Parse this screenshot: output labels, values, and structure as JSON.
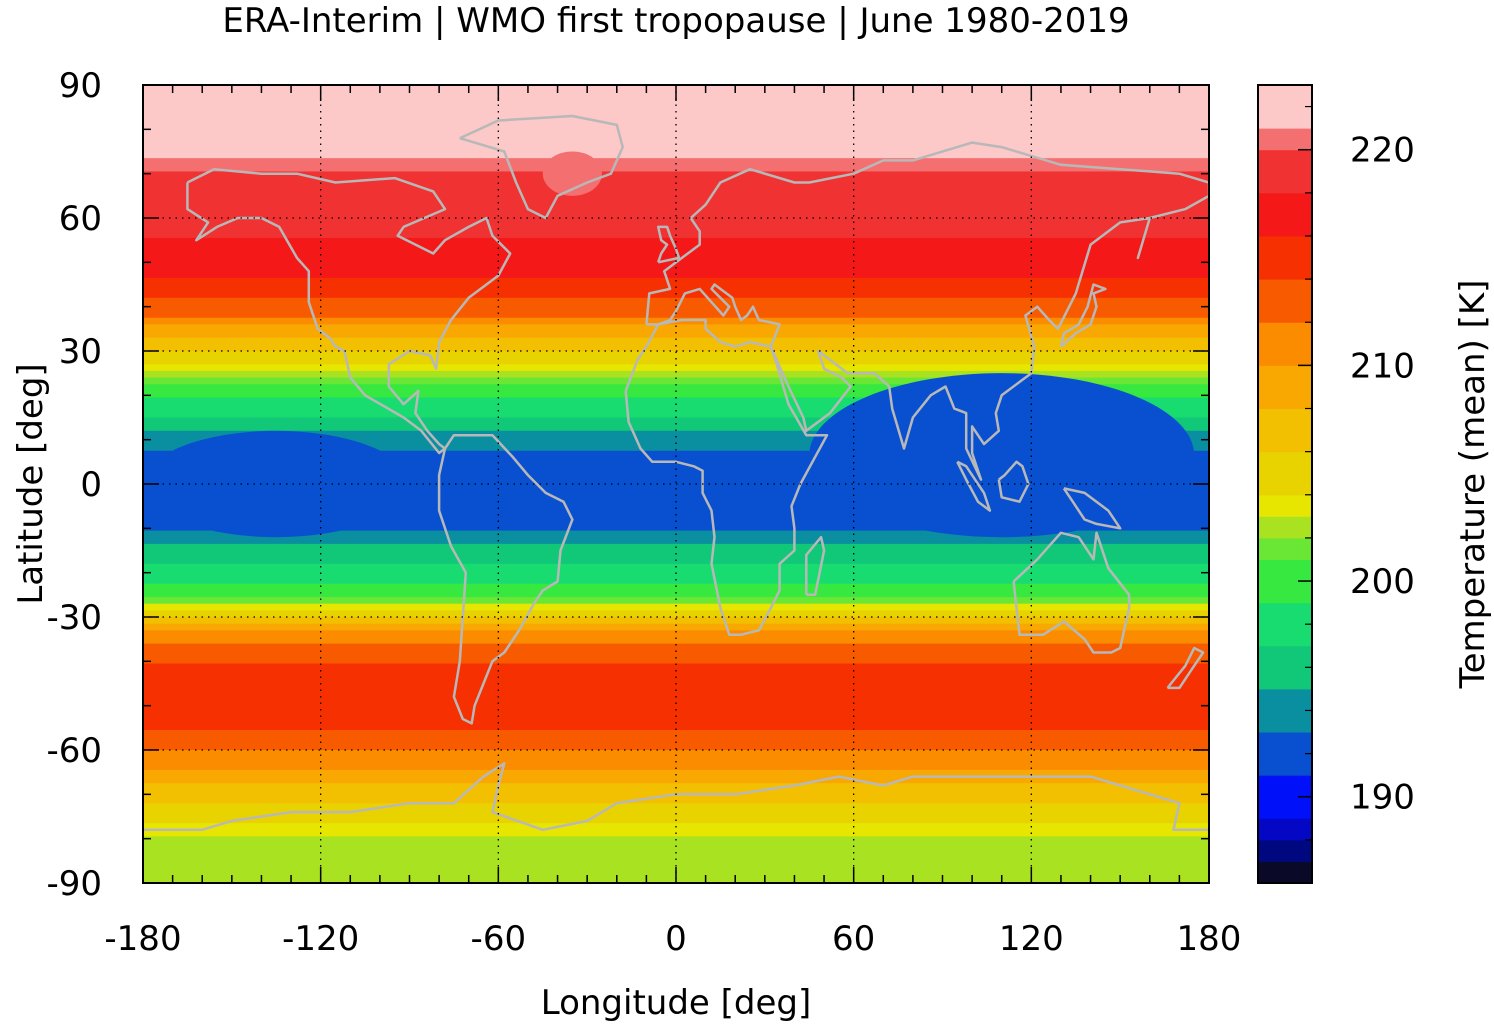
{
  "chart_data": {
    "type": "heatmap",
    "title": "ERA-Interim | WMO first tropopause | June 1980-2019",
    "xlabel": "Longitude [deg]",
    "ylabel": "Latitude [deg]",
    "colorbar_label": "Temperature (mean) [K]",
    "xlim": [
      -180,
      180
    ],
    "ylim": [
      -90,
      90
    ],
    "xticks": [
      -180,
      -120,
      -60,
      0,
      60,
      120,
      180
    ],
    "xtick_labels": [
      "-180",
      "-120",
      "-60",
      "0",
      "60",
      "120",
      "180"
    ],
    "yticks": [
      90,
      60,
      30,
      0,
      -30,
      -60,
      -90
    ],
    "ytick_labels": [
      "90",
      "60",
      "30",
      "0",
      "-30",
      "-60",
      "-90"
    ],
    "grid": true,
    "colorbar": {
      "range": [
        186,
        223
      ],
      "ticks": [
        190,
        200,
        210,
        220
      ],
      "tick_labels": [
        "190",
        "200",
        "210",
        "220"
      ],
      "levels": [
        {
          "from": 186,
          "to": 187,
          "color": "#0a0a28"
        },
        {
          "from": 187,
          "to": 188,
          "color": "#000880"
        },
        {
          "from": 188,
          "to": 189,
          "color": "#0408c4"
        },
        {
          "from": 189,
          "to": 191,
          "color": "#0010f8"
        },
        {
          "from": 191,
          "to": 193,
          "color": "#0850d0"
        },
        {
          "from": 193,
          "to": 195,
          "color": "#0a8fa0"
        },
        {
          "from": 195,
          "to": 197,
          "color": "#10c877"
        },
        {
          "from": 197,
          "to": 199,
          "color": "#18dc70"
        },
        {
          "from": 199,
          "to": 201,
          "color": "#36e840"
        },
        {
          "from": 201,
          "to": 202,
          "color": "#6ae634"
        },
        {
          "from": 202,
          "to": 203,
          "color": "#a8e220"
        },
        {
          "from": 203,
          "to": 204,
          "color": "#e6e600"
        },
        {
          "from": 204,
          "to": 206,
          "color": "#e8d200"
        },
        {
          "from": 206,
          "to": 208,
          "color": "#f2c000"
        },
        {
          "from": 208,
          "to": 210,
          "color": "#f8a800"
        },
        {
          "from": 210,
          "to": 212,
          "color": "#fb8c00"
        },
        {
          "from": 212,
          "to": 214,
          "color": "#f85a00"
        },
        {
          "from": 214,
          "to": 216,
          "color": "#f63000"
        },
        {
          "from": 216,
          "to": 218,
          "color": "#f41818"
        },
        {
          "from": 218,
          "to": 220,
          "color": "#f03232"
        },
        {
          "from": 220,
          "to": 221,
          "color": "#f47070"
        },
        {
          "from": 221,
          "to": 223,
          "color": "#fcc8c8"
        }
      ]
    },
    "zonal_profile": {
      "lat": [
        90,
        80,
        75,
        72,
        68,
        62,
        56,
        50,
        46,
        42,
        38,
        34,
        30,
        26,
        22,
        18,
        14,
        10,
        5,
        0,
        -5,
        -10,
        -14,
        -18,
        -22,
        -26,
        -28,
        -30,
        -34,
        -40,
        -46,
        -52,
        -56,
        -60,
        -64,
        -68,
        -72,
        -76,
        -80,
        -85,
        -90
      ],
      "temperature_K": [
        222.5,
        222,
        221.5,
        220.5,
        219.5,
        218.5,
        218,
        217.5,
        216,
        214,
        212,
        209,
        206,
        203.5,
        201,
        198.5,
        196,
        194,
        192,
        191.5,
        192,
        193,
        195,
        197,
        199,
        201,
        204,
        207,
        211,
        214,
        215,
        215,
        214,
        212,
        210,
        208,
        206,
        204,
        203,
        202.5,
        202
      ]
    },
    "features": [
      {
        "label": "cold tropical tropopause over Indian Ocean / Maritime Continent",
        "lon": [
          45,
          175
        ],
        "lat": [
          -12,
          25
        ],
        "temperature_K": 191
      },
      {
        "label": "cold tropical tropopause over eastern Pacific",
        "lon": [
          -180,
          -90
        ],
        "lat": [
          -12,
          12
        ],
        "temperature_K": 191.5
      },
      {
        "label": "warm polar tropopause over Greenland",
        "lon": [
          -45,
          -25
        ],
        "lat": [
          65,
          75
        ],
        "temperature_K": 220.5
      }
    ]
  }
}
